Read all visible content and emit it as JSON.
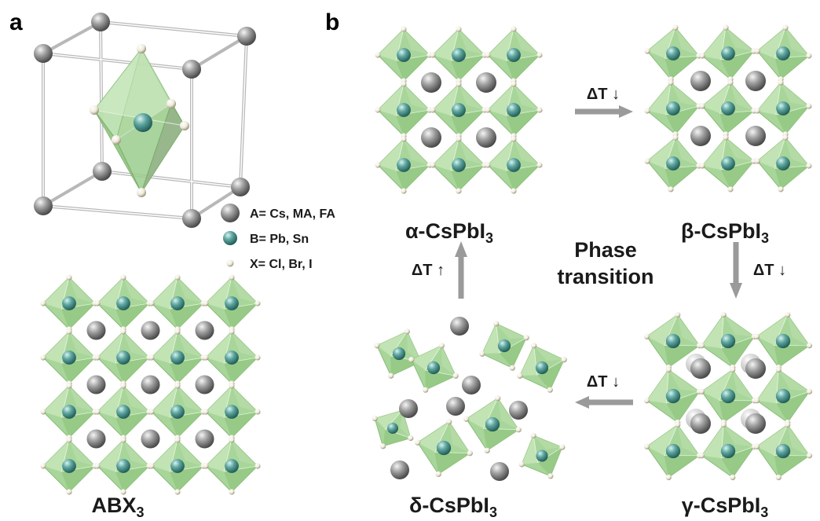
{
  "panel_labels": {
    "a": "a",
    "b": "b"
  },
  "legend": {
    "a_site": "A= Cs, MA, FA",
    "b_site": "B= Pb, Sn",
    "x_site": "X= Cl, Br, I"
  },
  "structures": {
    "abx3": {
      "base": "ABX",
      "sub": "3"
    },
    "alpha": {
      "base": "α-CsPbI",
      "sub": "3"
    },
    "beta": {
      "base": "β-CsPbI",
      "sub": "3"
    },
    "gamma": {
      "base": "γ-CsPbI",
      "sub": "3"
    },
    "delta": {
      "base": "δ-CsPbI",
      "sub": "3"
    }
  },
  "arrows": {
    "alpha_to_beta": "ΔT ↓",
    "beta_to_gamma": "ΔT ↓",
    "gamma_to_delta": "ΔT ↓",
    "delta_to_alpha": "ΔT ↑"
  },
  "center_text": {
    "line1": "Phase",
    "line2": "transition"
  },
  "colors": {
    "octahedron": "#a8d69a",
    "a_cation": "#8c8c8c",
    "b_cation": "#5fa6a0",
    "x_anion": "#f2f0e0",
    "arrow": "#9a9a9a"
  }
}
